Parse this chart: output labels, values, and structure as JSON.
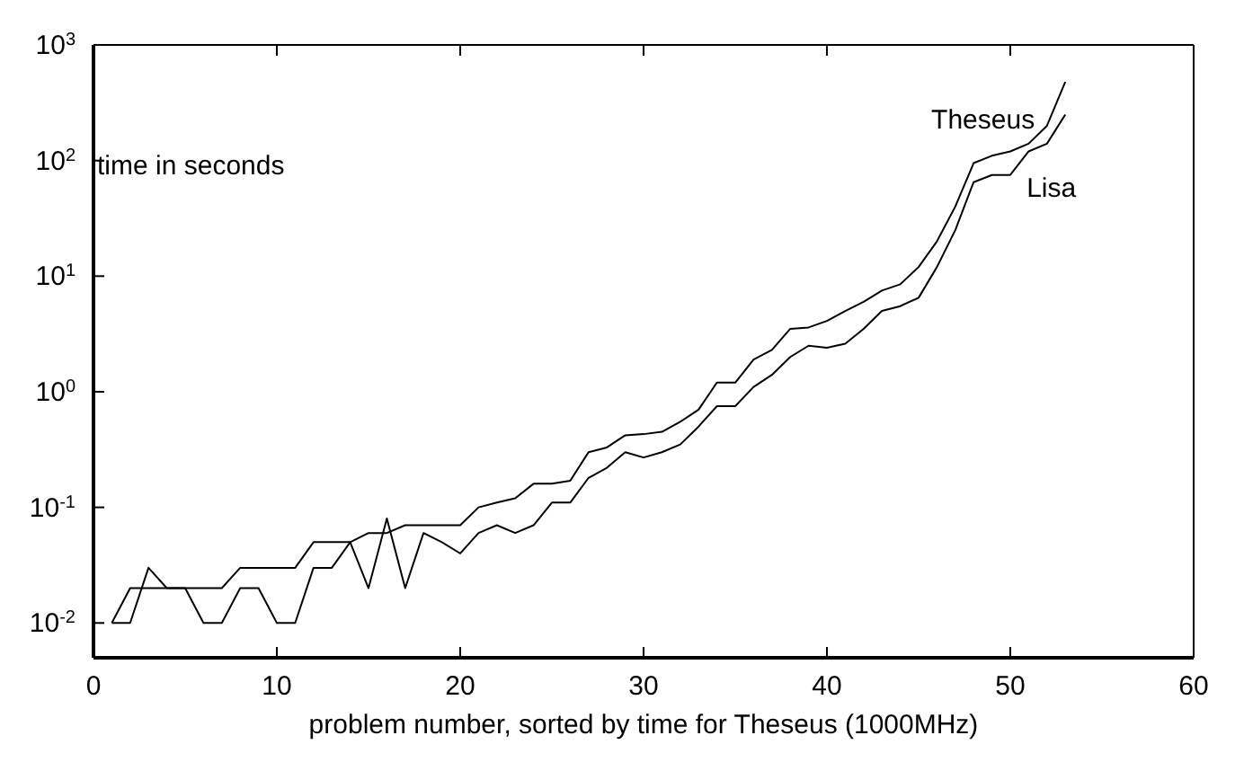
{
  "chart_data": {
    "type": "line",
    "xlabel": "problem number, sorted by time for Theseus (1000MHz)",
    "ylabel": "time in seconds",
    "x": [
      1,
      2,
      3,
      4,
      5,
      6,
      7,
      8,
      9,
      10,
      11,
      12,
      13,
      14,
      15,
      16,
      17,
      18,
      19,
      20,
      21,
      22,
      23,
      24,
      25,
      26,
      27,
      28,
      29,
      30,
      31,
      32,
      33,
      34,
      35,
      36,
      37,
      38,
      39,
      40,
      41,
      42,
      43,
      44,
      45,
      46,
      47,
      48,
      49,
      50,
      51,
      52,
      53
    ],
    "series": [
      {
        "name": "Theseus",
        "color": "#000000",
        "values": [
          0.01,
          0.02,
          0.02,
          0.02,
          0.02,
          0.02,
          0.02,
          0.03,
          0.03,
          0.03,
          0.03,
          0.05,
          0.05,
          0.05,
          0.06,
          0.06,
          0.07,
          0.07,
          0.07,
          0.07,
          0.1,
          0.11,
          0.12,
          0.16,
          0.16,
          0.17,
          0.3,
          0.33,
          0.42,
          0.43,
          0.45,
          0.55,
          0.7,
          1.2,
          1.2,
          1.9,
          2.3,
          3.5,
          3.6,
          4.1,
          5,
          6,
          7.5,
          8.5,
          12,
          20,
          40,
          95,
          110,
          120,
          140,
          200,
          480
        ]
      },
      {
        "name": "Lisa",
        "color": "#000000",
        "values": [
          0.01,
          0.01,
          0.03,
          0.02,
          0.02,
          0.01,
          0.01,
          0.02,
          0.02,
          0.01,
          0.01,
          0.03,
          0.03,
          0.05,
          0.02,
          0.08,
          0.02,
          0.06,
          0.05,
          0.04,
          0.06,
          0.07,
          0.06,
          0.07,
          0.11,
          0.11,
          0.18,
          0.22,
          0.3,
          0.27,
          0.3,
          0.35,
          0.5,
          0.75,
          0.75,
          1.1,
          1.4,
          2,
          2.5,
          2.4,
          2.6,
          3.5,
          5,
          5.5,
          6.5,
          12,
          25,
          65,
          75,
          75,
          120,
          140,
          250
        ]
      }
    ],
    "xlim": [
      0,
      60
    ],
    "xticks": [
      0,
      10,
      20,
      30,
      40,
      50,
      60
    ],
    "ylim": [
      0.005,
      1000
    ],
    "yticks": [
      {
        "value": 0.01,
        "label": "10$^{-2}$"
      },
      {
        "value": 0.1,
        "label": "10$^{-1}$"
      },
      {
        "value": 1,
        "label": "10$^{0}$"
      },
      {
        "value": 10,
        "label": "10$^{1}$"
      },
      {
        "value": 100,
        "label": "10$^{2}$"
      },
      {
        "value": 1000,
        "label": "10$^{3}$"
      }
    ],
    "log": "y",
    "grid": false,
    "legend": false,
    "marker": "none",
    "line_style": "solid"
  }
}
